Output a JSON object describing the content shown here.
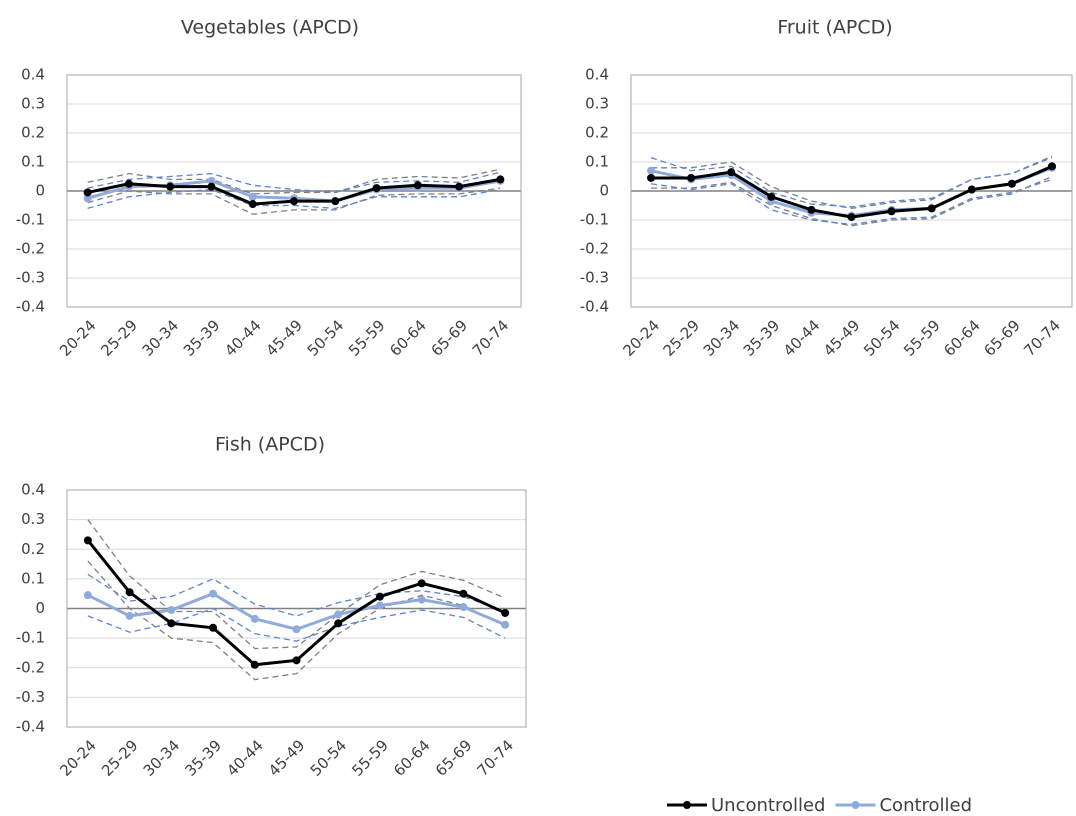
{
  "chart_data": [
    {
      "type": "line",
      "title": "Vegetables (APCD)",
      "categories": [
        "20-24",
        "25-29",
        "30-34",
        "35-39",
        "40-44",
        "45-49",
        "50-54",
        "55-59",
        "60-64",
        "65-69",
        "70-74"
      ],
      "ylim": [
        -0.4,
        0.4
      ],
      "yticks": [
        -0.4,
        -0.3,
        -0.2,
        -0.1,
        0,
        0.1,
        0.2,
        0.3,
        0.4
      ],
      "grid": true,
      "series": [
        {
          "name": "Uncontrolled",
          "color": "#000000",
          "ci_color": "#7f7f7f",
          "values": [
            -0.005,
            0.025,
            0.015,
            0.015,
            -0.045,
            -0.035,
            -0.035,
            0.01,
            0.02,
            0.015,
            0.04
          ],
          "upper": [
            0.03,
            0.06,
            0.04,
            0.04,
            -0.01,
            -0.005,
            -0.005,
            0.04,
            0.05,
            0.045,
            0.075
          ],
          "lower": [
            -0.04,
            0,
            -0.01,
            -0.01,
            -0.08,
            -0.065,
            -0.065,
            -0.015,
            -0.01,
            -0.01,
            0.01
          ]
        },
        {
          "name": "Controlled",
          "color": "#8faadc",
          "ci_color": "#5b84d6",
          "values": [
            -0.025,
            0.015,
            0.02,
            0.035,
            -0.02,
            -0.025,
            -0.035,
            0.005,
            0.01,
            0.01,
            0.035
          ],
          "upper": [
            0.01,
            0.04,
            0.05,
            0.06,
            0.02,
            0.005,
            -0.005,
            0.03,
            0.035,
            0.03,
            0.065
          ],
          "lower": [
            -0.06,
            -0.02,
            -0.005,
            0.005,
            -0.05,
            -0.05,
            -0.06,
            -0.02,
            -0.02,
            -0.02,
            0.005
          ]
        }
      ]
    },
    {
      "type": "line",
      "title": "Fruit (APCD)",
      "categories": [
        "20-24",
        "25-29",
        "30-34",
        "35-39",
        "40-44",
        "45-49",
        "50-54",
        "55-59",
        "60-64",
        "65-69",
        "70-74"
      ],
      "ylim": [
        -0.4,
        0.4
      ],
      "yticks": [
        -0.4,
        -0.3,
        -0.2,
        -0.1,
        0,
        0.1,
        0.2,
        0.3,
        0.4
      ],
      "grid": true,
      "series": [
        {
          "name": "Uncontrolled",
          "color": "#000000",
          "ci_color": "#7f7f7f",
          "values": [
            0.045,
            0.045,
            0.065,
            -0.02,
            -0.065,
            -0.09,
            -0.07,
            -0.06,
            0.005,
            0.025,
            0.085
          ],
          "upper": [
            0.08,
            0.08,
            0.1,
            0.015,
            -0.035,
            -0.06,
            -0.04,
            -0.03,
            0.04,
            0.06,
            0.12
          ],
          "lower": [
            0.01,
            0.01,
            0.03,
            -0.05,
            -0.095,
            -0.12,
            -0.1,
            -0.095,
            -0.03,
            -0.01,
            0.05
          ]
        },
        {
          "name": "Controlled",
          "color": "#8faadc",
          "ci_color": "#5b84d6",
          "values": [
            0.07,
            0.04,
            0.055,
            -0.035,
            -0.075,
            -0.085,
            -0.065,
            -0.06,
            0.005,
            0.025,
            0.08
          ],
          "upper": [
            0.115,
            0.07,
            0.085,
            -0.005,
            -0.045,
            -0.055,
            -0.035,
            -0.025,
            0.04,
            0.06,
            0.115
          ],
          "lower": [
            0.025,
            0.005,
            0.025,
            -0.065,
            -0.1,
            -0.115,
            -0.095,
            -0.09,
            -0.025,
            -0.005,
            0.04
          ]
        }
      ]
    },
    {
      "type": "line",
      "title": "Fish (APCD)",
      "categories": [
        "20-24",
        "25-29",
        "30-34",
        "35-39",
        "40-44",
        "45-49",
        "50-54",
        "55-59",
        "60-64",
        "65-69",
        "70-74"
      ],
      "ylim": [
        -0.4,
        0.4
      ],
      "yticks": [
        -0.4,
        -0.3,
        -0.2,
        -0.1,
        0,
        0.1,
        0.2,
        0.3,
        0.4
      ],
      "grid": true,
      "series": [
        {
          "name": "Uncontrolled",
          "color": "#000000",
          "ci_color": "#7f7f7f",
          "values": [
            0.23,
            0.055,
            -0.05,
            -0.065,
            -0.19,
            -0.175,
            -0.05,
            0.04,
            0.085,
            0.05,
            -0.015
          ],
          "upper": [
            0.3,
            0.11,
            -0.01,
            -0.01,
            -0.135,
            -0.13,
            -0.02,
            0.08,
            0.125,
            0.095,
            0.035
          ],
          "lower": [
            0.16,
            0,
            -0.1,
            -0.115,
            -0.24,
            -0.22,
            -0.085,
            0,
            0.045,
            0.01,
            -0.06
          ]
        },
        {
          "name": "Controlled",
          "color": "#8faadc",
          "ci_color": "#5b84d6",
          "values": [
            0.045,
            -0.025,
            -0.005,
            0.05,
            -0.035,
            -0.07,
            -0.02,
            0.01,
            0.03,
            0.005,
            -0.055
          ],
          "upper": [
            0.115,
            0.025,
            0.04,
            0.1,
            0.015,
            -0.025,
            0.02,
            0.05,
            0.06,
            0.04,
            -0.01
          ],
          "lower": [
            -0.025,
            -0.08,
            -0.05,
            0,
            -0.085,
            -0.11,
            -0.06,
            -0.03,
            -0.005,
            -0.03,
            -0.1
          ]
        }
      ]
    }
  ]
}
